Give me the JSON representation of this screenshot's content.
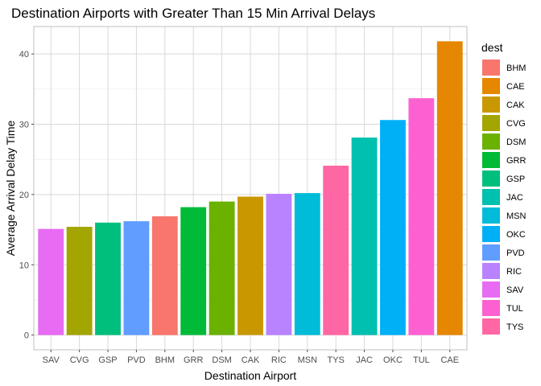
{
  "chart_data": {
    "type": "bar",
    "title": "Destination Airports with Greater Than 15 Min Arrival Delays",
    "xlabel": "Destination Airport",
    "ylabel": "Average Arrival Delay Time",
    "categories": [
      "SAV",
      "CVG",
      "GSP",
      "PVD",
      "BHM",
      "GRR",
      "DSM",
      "CAK",
      "RIC",
      "MSN",
      "TYS",
      "JAC",
      "OKC",
      "TUL",
      "CAE"
    ],
    "values": [
      15.1,
      15.4,
      16.0,
      16.2,
      16.9,
      18.2,
      19.0,
      19.7,
      20.1,
      20.2,
      24.1,
      28.1,
      30.6,
      33.7,
      41.8
    ],
    "ylim": [
      -2.1,
      43.9
    ],
    "yticks": [
      0,
      10,
      20,
      30,
      40
    ],
    "grid": true,
    "legend_title": "dest",
    "legend_position": "right",
    "legend": [
      {
        "label": "BHM",
        "color": "#F8766D"
      },
      {
        "label": "CAE",
        "color": "#E58700"
      },
      {
        "label": "CAK",
        "color": "#C99800"
      },
      {
        "label": "CVG",
        "color": "#A3A500"
      },
      {
        "label": "DSM",
        "color": "#6BB100"
      },
      {
        "label": "GRR",
        "color": "#00BA38"
      },
      {
        "label": "GSP",
        "color": "#00BF7D"
      },
      {
        "label": "JAC",
        "color": "#00C0AF"
      },
      {
        "label": "MSN",
        "color": "#00BCD8"
      },
      {
        "label": "OKC",
        "color": "#00B0F6"
      },
      {
        "label": "PVD",
        "color": "#619CFF"
      },
      {
        "label": "RIC",
        "color": "#B983FF"
      },
      {
        "label": "SAV",
        "color": "#E76BF3"
      },
      {
        "label": "TUL",
        "color": "#FD61D1"
      },
      {
        "label": "TYS",
        "color": "#FF67A4"
      }
    ]
  }
}
